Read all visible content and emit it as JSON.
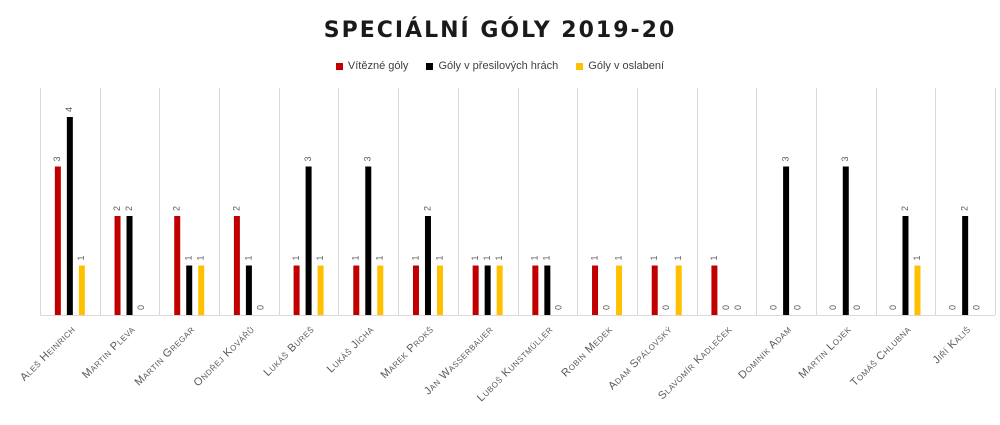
{
  "chart_data": {
    "type": "bar",
    "title": "SPECIÁLNÍ GÓLY 2019-20",
    "xlabel": "",
    "ylabel": "",
    "ylim": [
      0,
      4
    ],
    "grid": "vertical category separators",
    "legend_position": "top",
    "categories": [
      "Aleš Heinrich",
      "Martin Pleva",
      "Martin Gregar",
      "Ondřej Kovářů",
      "Lukáš Bureš",
      "Lukáš Jícha",
      "Marek Prokš",
      "Jan Wasserbauer",
      "Luboš Kunstmüller",
      "Robin Medek",
      "Adam Spálovský",
      "Slavomír Kadleček",
      "Dominik Adam",
      "Martin Lojek",
      "Tomáš Chlubna",
      "Jiří Kališ"
    ],
    "series": [
      {
        "name": "Vítězné góly",
        "color": "#c00000",
        "values": [
          3,
          2,
          2,
          2,
          1,
          1,
          1,
          1,
          1,
          1,
          1,
          1,
          0,
          0,
          0,
          0
        ]
      },
      {
        "name": "Góly v přesilových hrách",
        "color": "#000000",
        "values": [
          4,
          2,
          1,
          1,
          3,
          3,
          2,
          1,
          1,
          0,
          0,
          0,
          3,
          3,
          2,
          2
        ]
      },
      {
        "name": "Góly v oslabení",
        "color": "#ffc000",
        "values": [
          1,
          0,
          1,
          0,
          1,
          1,
          1,
          1,
          0,
          1,
          1,
          0,
          0,
          0,
          1,
          0
        ]
      }
    ]
  }
}
